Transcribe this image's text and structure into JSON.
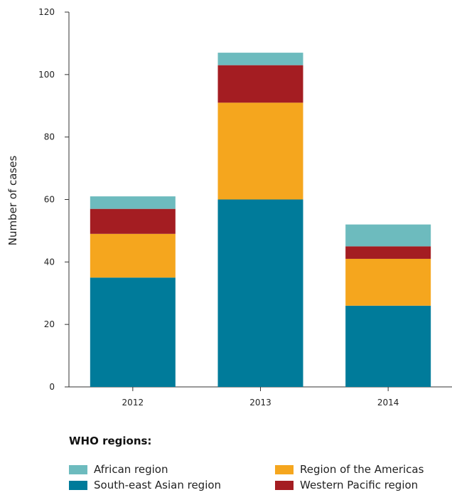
{
  "chart_data": {
    "type": "bar",
    "stacked": true,
    "categories": [
      "2012",
      "2013",
      "2014"
    ],
    "series": [
      {
        "name": "South-east Asian region",
        "color": "#007B9A",
        "values": [
          35,
          60,
          26
        ]
      },
      {
        "name": "Region of the Americas",
        "color": "#F5A61E",
        "values": [
          14,
          31,
          15
        ]
      },
      {
        "name": "Western Pacific region",
        "color": "#A41D22",
        "values": [
          8,
          12,
          4
        ]
      },
      {
        "name": "African region",
        "color": "#6DBBBE",
        "values": [
          4,
          4,
          7
        ]
      }
    ],
    "ylabel": "Number of cases",
    "ylim": [
      0,
      120
    ],
    "yticks": [
      "0",
      "20",
      "40",
      "60",
      "80",
      "100",
      "120"
    ],
    "grid": false,
    "legend": {
      "title": "WHO regions:",
      "placement": "bottom",
      "order": [
        "African region",
        "Region of the Americas",
        "South-east Asian region",
        "Western Pacific region"
      ]
    }
  }
}
